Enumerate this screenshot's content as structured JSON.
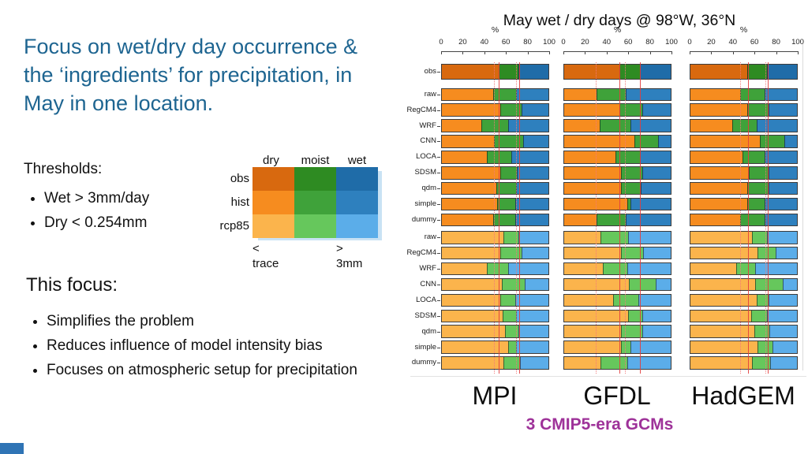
{
  "slide": {
    "title_lines": [
      "Focus on wet/dry day occurrence &",
      "the ‘ingredients’ for precipitation, in",
      "May in one location."
    ],
    "title_color": "#1e6591",
    "thresholds": {
      "heading": "Thresholds:",
      "items": [
        "Wet > 3mm/day",
        "Dry < 0.254mm"
      ]
    },
    "focus": {
      "heading": "This focus:",
      "items": [
        "Simplifies the problem",
        "Reduces influence of model intensity bias",
        "Focuses on atmospheric setup for precipitation"
      ]
    },
    "caption": {
      "text": "3 CMIP5-era GCMs",
      "color": "#9e3299"
    }
  },
  "legend": {
    "col_labels": [
      "dry",
      "moist",
      "wet"
    ],
    "row_labels": [
      "obs",
      "hist",
      "rcp85"
    ],
    "colors": [
      [
        "#d8690f",
        "#2e8b22",
        "#1f6ca8"
      ],
      [
        "#f68c1f",
        "#3fa23a",
        "#2e80be"
      ],
      [
        "#fbb44c",
        "#66c75c",
        "#5bade9"
      ]
    ],
    "bottom_left": {
      "sign": "<",
      "label": "trace"
    },
    "bottom_right": {
      "sign": ">",
      "label": "3mm"
    }
  },
  "chart_data": {
    "type": "bar",
    "orientation": "horizontal-stacked",
    "title": "May wet / dry days @ 98°W, 36°N",
    "xlabel": "%",
    "x_ticks": [
      0,
      20,
      40,
      60,
      80,
      100
    ],
    "xlim": [
      0,
      100
    ],
    "grid": false,
    "legend_position": "none",
    "categories": [
      "dry",
      "moist",
      "wet"
    ],
    "palette": {
      "obs": [
        "#d8690f",
        "#2e8b22",
        "#1f6ca8"
      ],
      "hist": [
        "#f68c1f",
        "#3fa23a",
        "#2e80be"
      ],
      "rcp85": [
        "#fbb44c",
        "#66c75c",
        "#5bade9"
      ]
    },
    "obs_label": "obs",
    "row_labels": [
      "raw",
      "RegCM4",
      "WRF",
      "CNN",
      "LOCA",
      "SDSM",
      "qdm",
      "simple",
      "dummy"
    ],
    "groups": [
      "hist",
      "rcp85"
    ],
    "panels": [
      {
        "name": "MPI",
        "obs": [
          53,
          19,
          28
        ],
        "hist": [
          [
            48,
            22,
            30
          ],
          [
            55,
            20,
            25
          ],
          [
            37,
            25,
            38
          ],
          [
            49,
            27,
            24
          ],
          [
            42,
            23,
            35
          ],
          [
            55,
            15,
            30
          ],
          [
            51,
            19,
            30
          ],
          [
            52,
            17,
            31
          ],
          [
            48,
            21,
            31
          ]
        ],
        "rcp85": [
          [
            58,
            14,
            28
          ],
          [
            55,
            20,
            25
          ],
          [
            42,
            20,
            38
          ],
          [
            56,
            22,
            22
          ],
          [
            55,
            14,
            31
          ],
          [
            57,
            13,
            30
          ],
          [
            59,
            13,
            28
          ],
          [
            62,
            8,
            30
          ],
          [
            58,
            15,
            27
          ]
        ],
        "ref_solid": [
          53,
          72
        ],
        "ref_dotted": [
          49,
          69
        ]
      },
      {
        "name": "GFDL",
        "obs": [
          52,
          19,
          29
        ],
        "hist": [
          [
            30,
            28,
            42
          ],
          [
            52,
            21,
            27
          ],
          [
            33,
            29,
            38
          ],
          [
            66,
            22,
            12
          ],
          [
            48,
            23,
            29
          ],
          [
            53,
            20,
            27
          ],
          [
            53,
            19,
            28
          ],
          [
            59,
            3,
            38
          ],
          [
            30,
            28,
            42
          ]
        ],
        "rcp85": [
          [
            34,
            26,
            40
          ],
          [
            53,
            21,
            26
          ],
          [
            36,
            23,
            41
          ],
          [
            61,
            25,
            14
          ],
          [
            46,
            24,
            30
          ],
          [
            60,
            13,
            27
          ],
          [
            53,
            20,
            27
          ],
          [
            53,
            9,
            38
          ],
          [
            34,
            25,
            41
          ]
        ],
        "ref_solid": [
          52,
          71
        ],
        "ref_dotted": [
          30,
          57
        ]
      },
      {
        "name": "HadGEM",
        "obs": [
          53,
          19,
          28
        ],
        "hist": [
          [
            47,
            23,
            30
          ],
          [
            53,
            20,
            27
          ],
          [
            39,
            23,
            38
          ],
          [
            65,
            23,
            12
          ],
          [
            49,
            21,
            30
          ],
          [
            55,
            18,
            27
          ],
          [
            53,
            20,
            27
          ],
          [
            53,
            17,
            30
          ],
          [
            47,
            23,
            30
          ]
        ],
        "rcp85": [
          [
            58,
            14,
            28
          ],
          [
            63,
            17,
            20
          ],
          [
            43,
            18,
            39
          ],
          [
            61,
            26,
            13
          ],
          [
            62,
            11,
            27
          ],
          [
            57,
            15,
            28
          ],
          [
            60,
            14,
            26
          ],
          [
            63,
            14,
            23
          ],
          [
            58,
            17,
            25
          ]
        ],
        "ref_solid": [
          54,
          72
        ],
        "ref_dotted": [
          47,
          70
        ]
      }
    ],
    "gcm_labels": [
      "MPI",
      "GFDL",
      "HadGEM"
    ]
  }
}
